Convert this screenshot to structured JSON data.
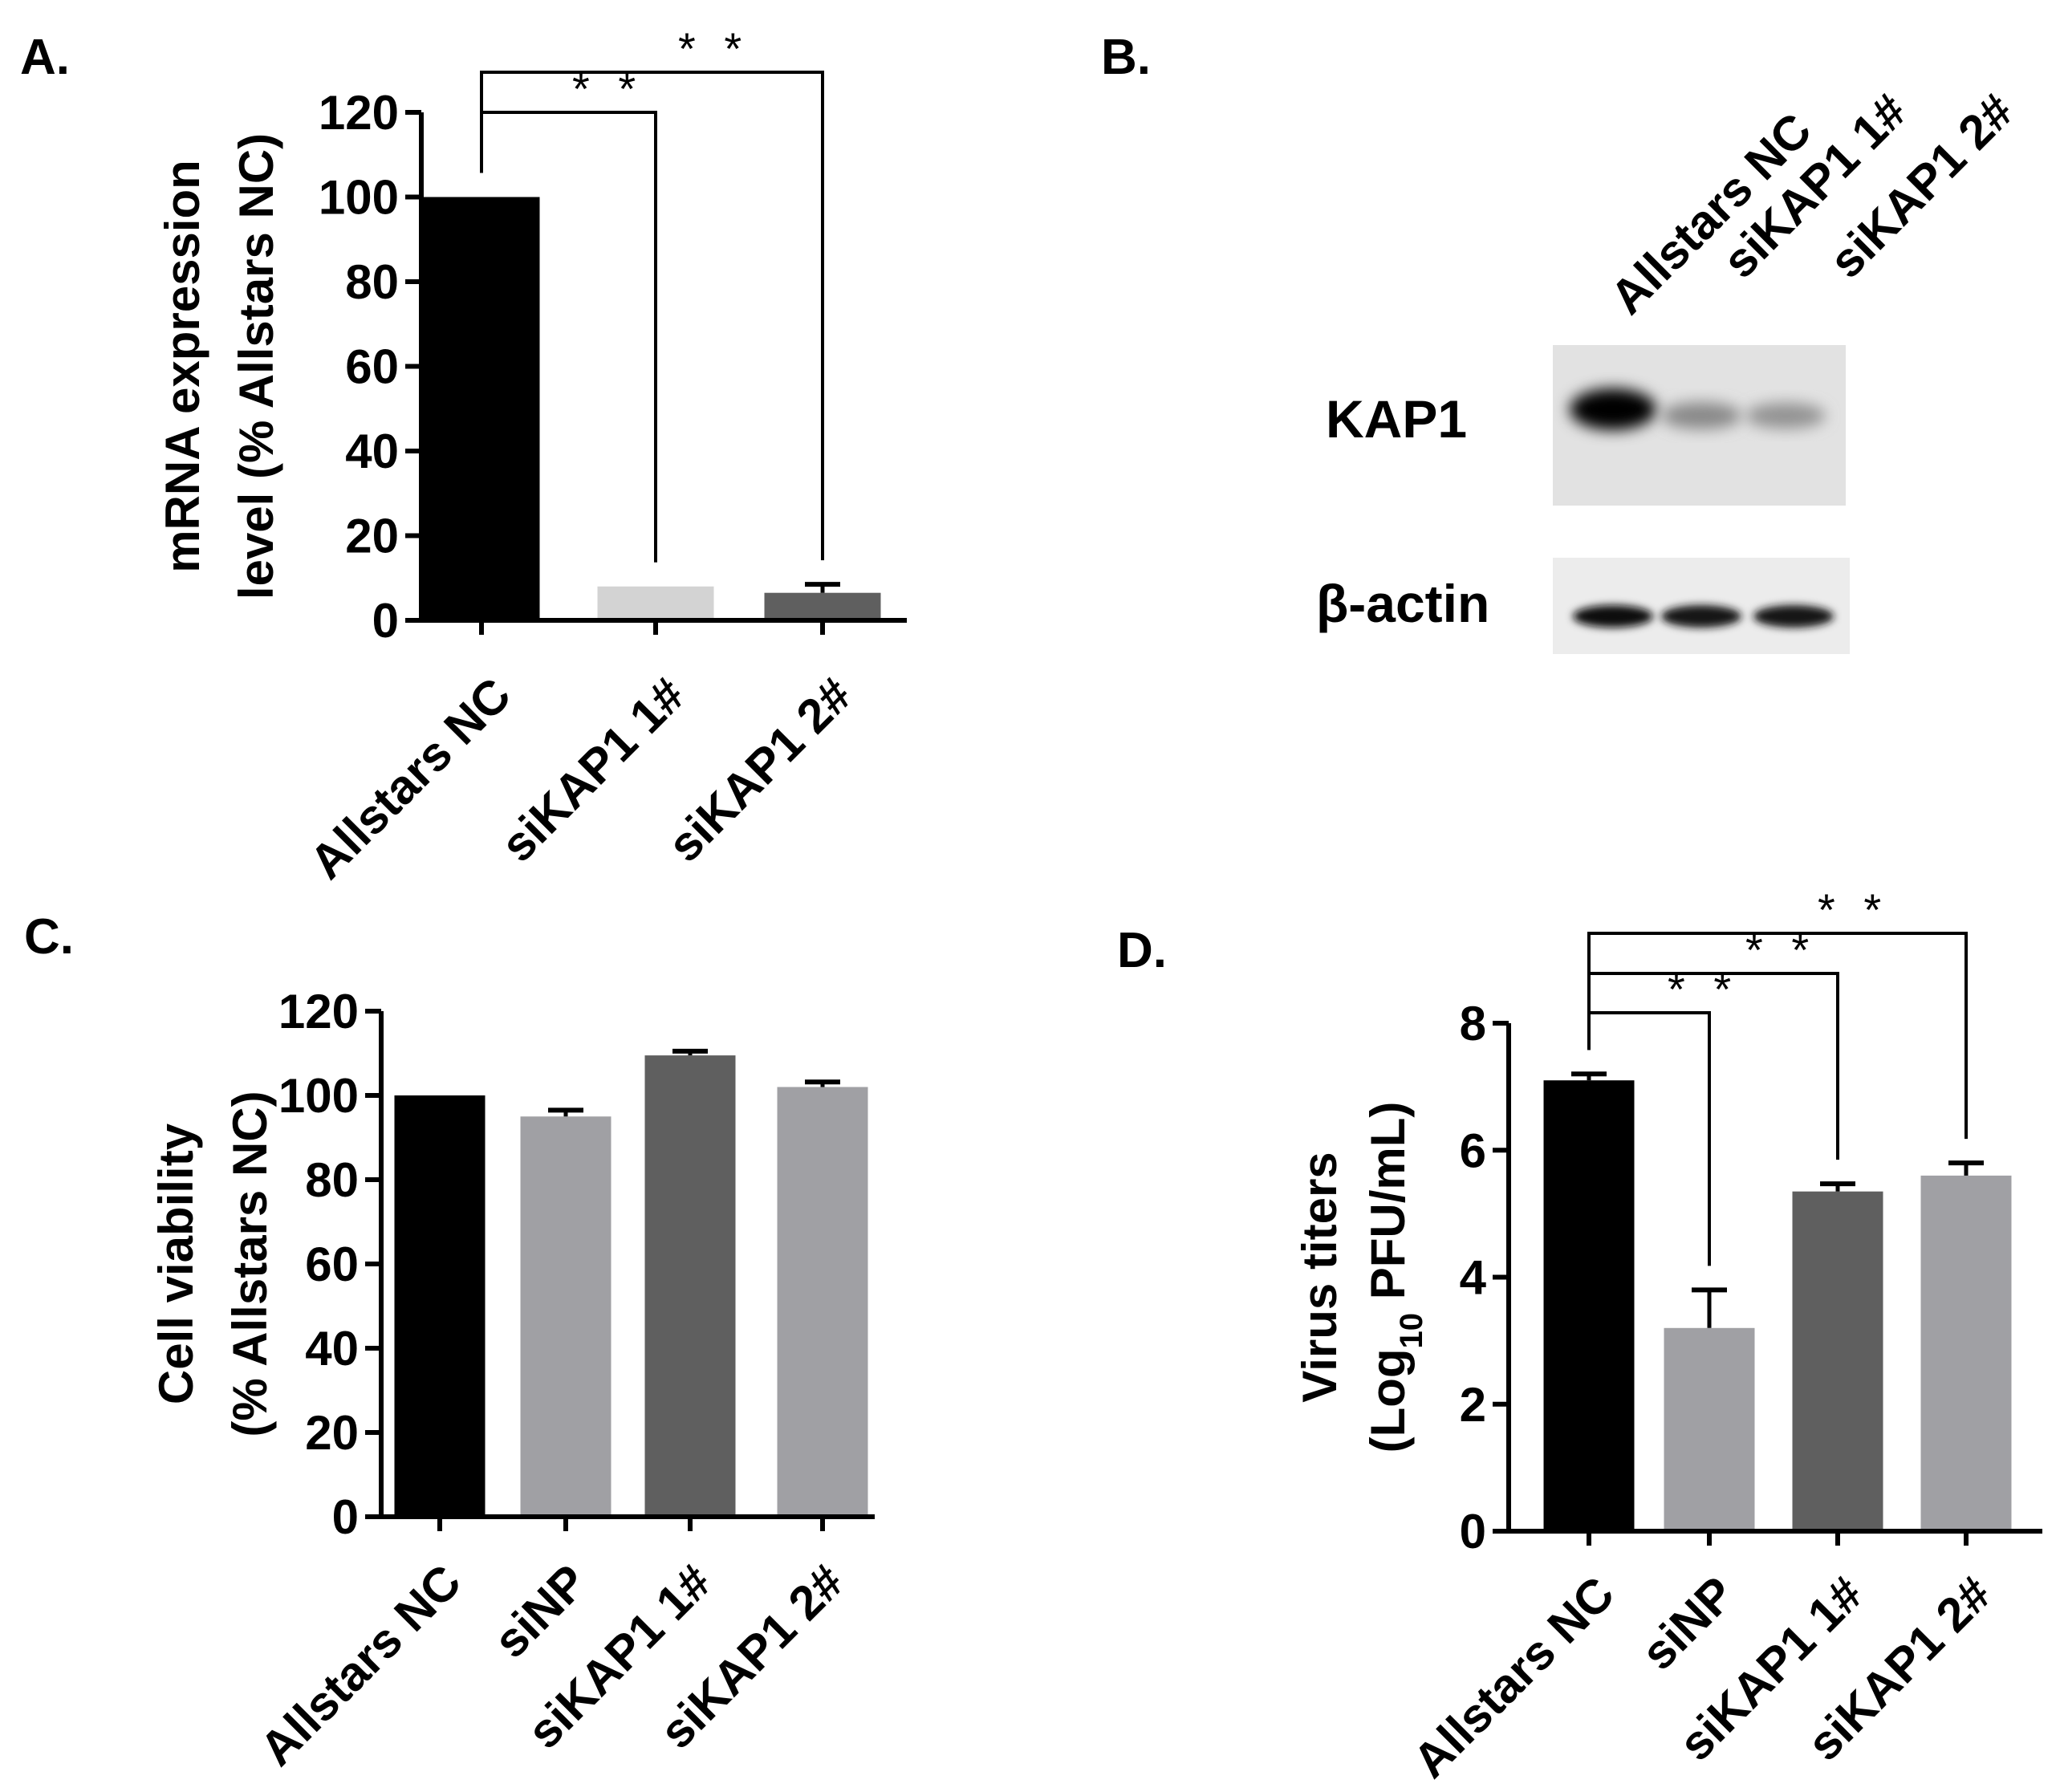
{
  "panels": {
    "A": {
      "label": "A."
    },
    "B": {
      "label": "B."
    },
    "C": {
      "label": "C."
    },
    "D": {
      "label": "D."
    }
  },
  "colors": {
    "black": "#000000",
    "light_gray": "#d3d3d3",
    "mid_gray": "#a0a0a4",
    "dark_gray": "#5f5f5f"
  },
  "chart_data": [
    {
      "panel": "A",
      "type": "bar",
      "title": "",
      "ylabel": "mRNA expression level (% Allstars NC)",
      "ylabel_lines": [
        "mRNA expression",
        "level (% Allstars NC)"
      ],
      "xlabel": "",
      "categories": [
        "Allstars NC",
        "siKAP1 1#",
        "siKAP1 2#"
      ],
      "values": [
        100,
        8,
        6.5
      ],
      "errors": [
        0,
        0,
        2
      ],
      "bar_colors": [
        "#000000",
        "#d3d3d3",
        "#5f5f5f"
      ],
      "ylim": [
        0,
        120
      ],
      "yticks": [
        0,
        20,
        40,
        60,
        80,
        100,
        120
      ],
      "significance": [
        {
          "from": "Allstars NC",
          "to": "siKAP1 1#",
          "label": "**"
        },
        {
          "from": "Allstars NC",
          "to": "siKAP1 2#",
          "label": "**"
        }
      ],
      "grid": false
    },
    {
      "panel": "C",
      "type": "bar",
      "title": "",
      "ylabel": "Cell viability (% Allstars NC)",
      "ylabel_lines": [
        "Cell viability",
        "(% Allstars NC)"
      ],
      "xlabel": "",
      "categories": [
        "Allstars NC",
        "siNP",
        "siKAP1 1#",
        "siKAP1 2#"
      ],
      "values": [
        100,
        95,
        109.5,
        102
      ],
      "errors": [
        0,
        1.5,
        1,
        1.2
      ],
      "bar_colors": [
        "#000000",
        "#a0a0a4",
        "#5f5f5f",
        "#a0a0a4"
      ],
      "ylim": [
        0,
        120
      ],
      "yticks": [
        0,
        20,
        40,
        60,
        80,
        100,
        120
      ],
      "significance": [],
      "grid": false
    },
    {
      "panel": "D",
      "type": "bar",
      "title": "",
      "ylabel": "Virus titers (Log10 PFU/mL)",
      "ylabel_lines": [
        "Virus titers",
        "(Log",
        "10",
        "PFU/mL)"
      ],
      "xlabel": "",
      "categories": [
        "Allstars NC",
        "siNP",
        "siKAP1 1#",
        "siKAP1 2#"
      ],
      "values": [
        7.1,
        3.2,
        5.35,
        5.6
      ],
      "errors": [
        0.1,
        0.6,
        0.12,
        0.2
      ],
      "bar_colors": [
        "#000000",
        "#a0a0a4",
        "#5f5f5f",
        "#a0a0a4"
      ],
      "ylim": [
        0,
        8
      ],
      "yticks": [
        0,
        2,
        4,
        6,
        8
      ],
      "significance": [
        {
          "from": "Allstars NC",
          "to": "siNP",
          "label": "**"
        },
        {
          "from": "Allstars NC",
          "to": "siKAP1 1#",
          "label": "**"
        },
        {
          "from": "Allstars NC",
          "to": "siKAP1 2#",
          "label": "**"
        }
      ],
      "grid": false
    }
  ],
  "western_blot": {
    "lanes": [
      "Allstars NC",
      "siKAP1 1#",
      "siKAP1 2#"
    ],
    "rows": [
      {
        "label": "KAP1",
        "band_intensity": [
          1.0,
          0.35,
          0.3
        ]
      },
      {
        "label": "β-actin",
        "band_intensity": [
          0.9,
          0.85,
          0.85
        ]
      }
    ]
  }
}
